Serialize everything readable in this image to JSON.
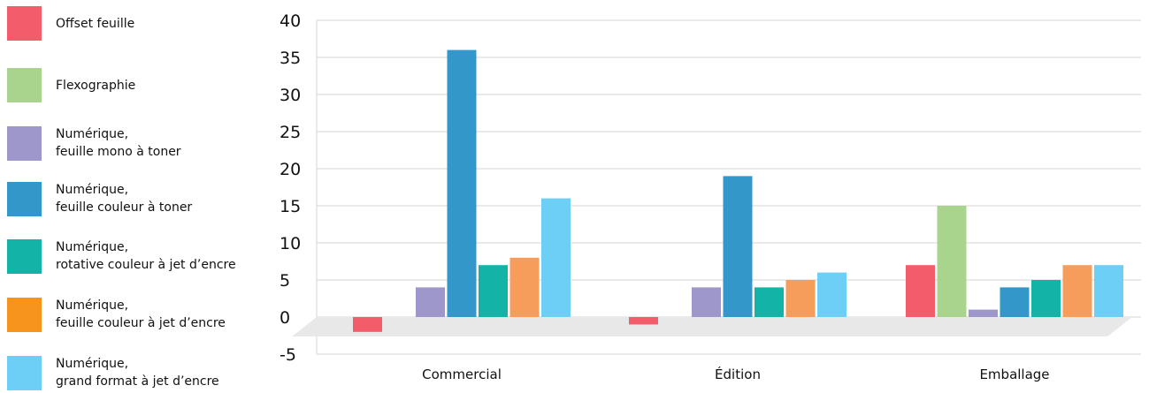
{
  "chart_data": {
    "type": "bar",
    "title": "",
    "xlabel": "",
    "ylabel": "",
    "categories": [
      "Commercial",
      "Édition",
      "Emballage"
    ],
    "ylim": [
      -5,
      40
    ],
    "yticks": [
      "40",
      "35",
      "30",
      "25",
      "20",
      "15",
      "10",
      "5",
      "0",
      "-5"
    ],
    "legend_position": "left",
    "series": [
      {
        "name": "Offset feuille",
        "color": "#f25c6b",
        "values": [
          -2,
          -1,
          7
        ]
      },
      {
        "name": "Flexographie",
        "color": "#a8d48e",
        "values": [
          0,
          0,
          15
        ]
      },
      {
        "name": "Numérique,\nfeuille mono à toner",
        "color": "#9e97cc",
        "values": [
          4,
          4,
          1
        ]
      },
      {
        "name": "Numérique,\nfeuille couleur à toner",
        "color": "#3497c9",
        "values": [
          36,
          19,
          4
        ]
      },
      {
        "name": "Numérique,\nrotative couleur à jet d’encre",
        "color": "#14b3a8",
        "values": [
          7,
          4,
          5
        ]
      },
      {
        "name": "Numérique,\nfeuille couleur à jet d’encre",
        "color": "#f79d5c",
        "values": [
          8,
          5,
          7
        ]
      },
      {
        "name": "Numérique,\ngrand format à jet d’encre",
        "color": "#6dcff6",
        "values": [
          16,
          6,
          7
        ]
      }
    ],
    "legend_swatch_colors": [
      "#f25c6b",
      "#a8d48e",
      "#9e97cc",
      "#3497c9",
      "#14b3a8",
      "#f7941d",
      "#6dcff6"
    ],
    "floor_color": "#e8e8e8"
  }
}
